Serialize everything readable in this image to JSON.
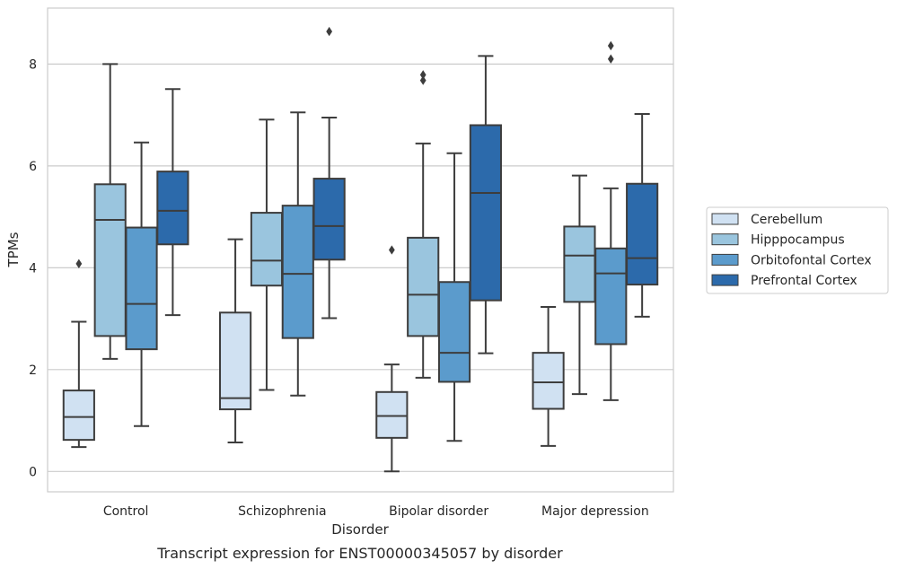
{
  "chart_data": {
    "type": "box",
    "caption": "Transcript expression for ENST00000345057 by disorder",
    "xlabel": "Disorder",
    "ylabel": "TPMs",
    "ylim": [
      -0.4,
      9.1
    ],
    "yticks": [
      0,
      2,
      4,
      6,
      8
    ],
    "grid": "horizontal",
    "legend_position": "right",
    "categories": [
      "Control",
      "Schizophrenia",
      "Bipolar disorder",
      "Major depression"
    ],
    "series": [
      {
        "name": "Cerebellum",
        "color": "#d0e1f2",
        "boxes": [
          {
            "whisker_low": 0.48,
            "q1": 0.62,
            "median": 1.07,
            "q3": 1.59,
            "whisker_high": 2.94,
            "outliers": [
              4.08
            ]
          },
          {
            "whisker_low": 0.57,
            "q1": 1.22,
            "median": 1.44,
            "q3": 3.12,
            "whisker_high": 4.56,
            "outliers": []
          },
          {
            "whisker_low": 0.0,
            "q1": 0.66,
            "median": 1.09,
            "q3": 1.56,
            "whisker_high": 2.1,
            "outliers": [
              4.35
            ]
          },
          {
            "whisker_low": 0.5,
            "q1": 1.23,
            "median": 1.75,
            "q3": 2.33,
            "whisker_high": 3.23,
            "outliers": []
          }
        ]
      },
      {
        "name": "Hipppocampus",
        "color": "#9ac5de",
        "boxes": [
          {
            "whisker_low": 2.21,
            "q1": 2.66,
            "median": 4.94,
            "q3": 5.64,
            "whisker_high": 8.0,
            "outliers": []
          },
          {
            "whisker_low": 1.6,
            "q1": 3.65,
            "median": 4.14,
            "q3": 5.08,
            "whisker_high": 6.91,
            "outliers": []
          },
          {
            "whisker_low": 1.84,
            "q1": 2.66,
            "median": 3.47,
            "q3": 4.59,
            "whisker_high": 6.44,
            "outliers": [
              7.68,
              7.79
            ]
          },
          {
            "whisker_low": 1.52,
            "q1": 3.33,
            "median": 4.24,
            "q3": 4.81,
            "whisker_high": 5.81,
            "outliers": []
          }
        ]
      },
      {
        "name": "Orbitofontal Cortex",
        "color": "#5b9bcc",
        "boxes": [
          {
            "whisker_low": 0.89,
            "q1": 2.4,
            "median": 3.29,
            "q3": 4.79,
            "whisker_high": 6.46,
            "outliers": []
          },
          {
            "whisker_low": 1.49,
            "q1": 2.62,
            "median": 3.88,
            "q3": 5.22,
            "whisker_high": 7.05,
            "outliers": []
          },
          {
            "whisker_low": 0.6,
            "q1": 1.76,
            "median": 2.33,
            "q3": 3.72,
            "whisker_high": 6.25,
            "outliers": []
          },
          {
            "whisker_low": 1.4,
            "q1": 2.5,
            "median": 3.89,
            "q3": 4.38,
            "whisker_high": 5.56,
            "outliers": [
              8.1,
              8.36
            ]
          }
        ]
      },
      {
        "name": "Prefrontal Cortex",
        "color": "#2c6aab",
        "boxes": [
          {
            "whisker_low": 3.07,
            "q1": 4.46,
            "median": 5.12,
            "q3": 5.89,
            "whisker_high": 7.51,
            "outliers": []
          },
          {
            "whisker_low": 3.01,
            "q1": 4.16,
            "median": 4.82,
            "q3": 5.75,
            "whisker_high": 6.95,
            "outliers": [
              8.64
            ]
          },
          {
            "whisker_low": 2.32,
            "q1": 3.36,
            "median": 5.47,
            "q3": 6.8,
            "whisker_high": 8.16,
            "outliers": []
          },
          {
            "whisker_low": 3.04,
            "q1": 3.67,
            "median": 4.19,
            "q3": 5.65,
            "whisker_high": 7.02,
            "outliers": []
          }
        ]
      }
    ]
  }
}
